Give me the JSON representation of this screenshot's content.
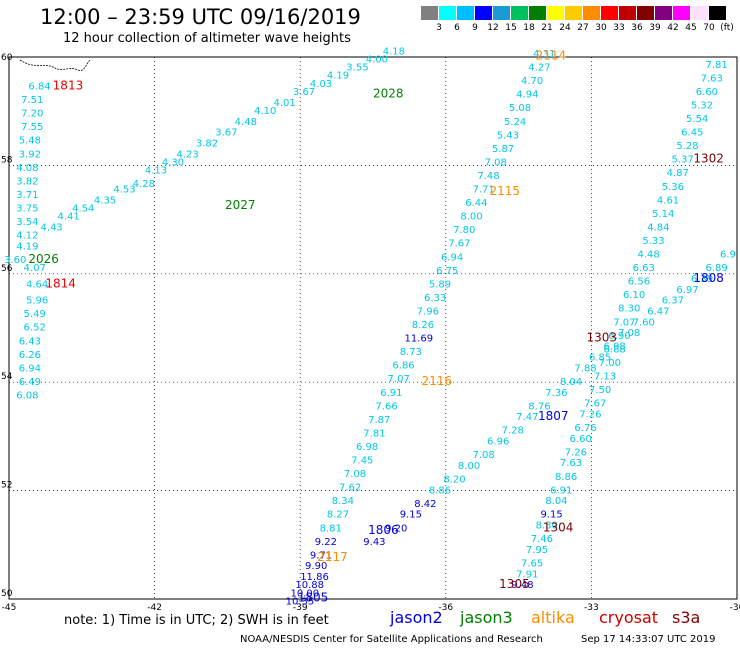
{
  "header": {
    "title": "12:00 – 23:59 UTC 09/16/2019",
    "subtitle": "12 hour collection of altimeter wave heights"
  },
  "colorbar": {
    "colors": [
      "#808080",
      "#00ffff",
      "#00bfff",
      "#0000ff",
      "#1c9ad6",
      "#00c060",
      "#008000",
      "#ffff00",
      "#ffcc00",
      "#ff8c00",
      "#ff0000",
      "#c00000",
      "#800000",
      "#800080",
      "#ff00ff",
      "#ffe0ff",
      "#000000"
    ],
    "labels": [
      "3",
      "6",
      "9",
      "12",
      "15",
      "18",
      "21",
      "24",
      "27",
      "30",
      "33",
      "36",
      "39",
      "42",
      "45",
      "70",
      "(ft)"
    ]
  },
  "footer": {
    "note": "note: 1) Time is in UTC; 2) SWH is in feet",
    "credit": "NOAA/NESDIS Center for Satellite Applications and Research",
    "timestamp": "Sep 17 14:33:07 UTC 2019"
  },
  "legend": [
    {
      "label": "jason2",
      "color": "#0000dd"
    },
    {
      "label": "jason3",
      "color": "#008000"
    },
    {
      "label": "altika",
      "color": "#ff8c00"
    },
    {
      "label": "cryosat",
      "color": "#cc0000"
    },
    {
      "label": "s3a",
      "color": "#800000"
    }
  ],
  "chart_data": {
    "type": "scatter",
    "title": "12:00 – 23:59 UTC 09/16/2019",
    "subtitle": "12 hour collection of altimeter wave heights",
    "xlabel": "",
    "ylabel": "",
    "xlim": [
      -45,
      -30
    ],
    "ylim": [
      50,
      60
    ],
    "x_ticks": [
      "-45",
      "-42",
      "-39",
      "-36",
      "-33",
      "-30"
    ],
    "y_ticks": [
      "50",
      "52",
      "54",
      "56",
      "58",
      "60"
    ],
    "grid": true,
    "colors": {
      "cyan": "#00c8e8",
      "blue": "#0000dd",
      "green": "#008000",
      "orange": "#ff8c00",
      "red": "#ee0000",
      "darkred": "#800000"
    },
    "points": [
      {
        "lon": -44.6,
        "lat": 59.4,
        "v": "6.84",
        "c": "cyan"
      },
      {
        "lon": -44.75,
        "lat": 59.15,
        "v": "7.51",
        "c": "cyan"
      },
      {
        "lon": -44.75,
        "lat": 58.9,
        "v": "7.20",
        "c": "cyan"
      },
      {
        "lon": -44.75,
        "lat": 58.65,
        "v": "7.55",
        "c": "cyan"
      },
      {
        "lon": -44.8,
        "lat": 58.4,
        "v": "5.48",
        "c": "cyan"
      },
      {
        "lon": -44.8,
        "lat": 58.15,
        "v": "3.92",
        "c": "cyan"
      },
      {
        "lon": -44.85,
        "lat": 57.9,
        "v": "4.08",
        "c": "cyan"
      },
      {
        "lon": -44.85,
        "lat": 57.65,
        "v": "3.82",
        "c": "cyan"
      },
      {
        "lon": -44.85,
        "lat": 57.4,
        "v": "3.71",
        "c": "cyan"
      },
      {
        "lon": -44.85,
        "lat": 57.15,
        "v": "3.75",
        "c": "cyan"
      },
      {
        "lon": -44.85,
        "lat": 56.9,
        "v": "3.54",
        "c": "cyan"
      },
      {
        "lon": -44.85,
        "lat": 56.65,
        "v": "4.12",
        "c": "cyan"
      },
      {
        "lon": -44.85,
        "lat": 56.45,
        "v": "4.19",
        "c": "cyan"
      },
      {
        "lon": -45.1,
        "lat": 56.2,
        "v": "3.60",
        "c": "cyan"
      },
      {
        "lon": -44.7,
        "lat": 56.05,
        "v": "4.07",
        "c": "cyan"
      },
      {
        "lon": -44.65,
        "lat": 55.75,
        "v": "4.64",
        "c": "cyan"
      },
      {
        "lon": -44.65,
        "lat": 55.45,
        "v": "5.96",
        "c": "cyan"
      },
      {
        "lon": -44.7,
        "lat": 55.2,
        "v": "5.49",
        "c": "cyan"
      },
      {
        "lon": -44.7,
        "lat": 54.95,
        "v": "6.52",
        "c": "cyan"
      },
      {
        "lon": -44.8,
        "lat": 54.7,
        "v": "6.43",
        "c": "cyan"
      },
      {
        "lon": -44.8,
        "lat": 54.45,
        "v": "6.26",
        "c": "cyan"
      },
      {
        "lon": -44.8,
        "lat": 54.2,
        "v": "6.94",
        "c": "cyan"
      },
      {
        "lon": -44.8,
        "lat": 53.95,
        "v": "6.49",
        "c": "cyan"
      },
      {
        "lon": -44.85,
        "lat": 53.7,
        "v": "6.08",
        "c": "cyan"
      },
      {
        "lon": -44.35,
        "lat": 56.8,
        "v": "4.43",
        "c": "cyan"
      },
      {
        "lon": -44.0,
        "lat": 57.0,
        "v": "4.41",
        "c": "cyan"
      },
      {
        "lon": -43.7,
        "lat": 57.15,
        "v": "4.54",
        "c": "cyan"
      },
      {
        "lon": -43.25,
        "lat": 57.3,
        "v": "4.35",
        "c": "cyan"
      },
      {
        "lon": -42.85,
        "lat": 57.5,
        "v": "4.53",
        "c": "cyan"
      },
      {
        "lon": -42.45,
        "lat": 57.6,
        "v": "4.28",
        "c": "cyan"
      },
      {
        "lon": -42.2,
        "lat": 57.85,
        "v": "4.13",
        "c": "cyan"
      },
      {
        "lon": -41.85,
        "lat": 58.0,
        "v": "4.30",
        "c": "cyan"
      },
      {
        "lon": -41.55,
        "lat": 58.15,
        "v": "4.23",
        "c": "cyan"
      },
      {
        "lon": -41.15,
        "lat": 58.35,
        "v": "3.82",
        "c": "cyan"
      },
      {
        "lon": -40.75,
        "lat": 58.55,
        "v": "3.67",
        "c": "cyan"
      },
      {
        "lon": -40.35,
        "lat": 58.75,
        "v": "4.48",
        "c": "cyan"
      },
      {
        "lon": -39.95,
        "lat": 58.95,
        "v": "4.10",
        "c": "cyan"
      },
      {
        "lon": -39.55,
        "lat": 59.1,
        "v": "4.01",
        "c": "cyan"
      },
      {
        "lon": -39.15,
        "lat": 59.3,
        "v": "3.67",
        "c": "cyan"
      },
      {
        "lon": -38.8,
        "lat": 59.45,
        "v": "4.03",
        "c": "cyan"
      },
      {
        "lon": -38.45,
        "lat": 59.6,
        "v": "4.19",
        "c": "cyan"
      },
      {
        "lon": -38.05,
        "lat": 59.75,
        "v": "3.55",
        "c": "cyan"
      },
      {
        "lon": -37.65,
        "lat": 59.9,
        "v": "4.00",
        "c": "cyan"
      },
      {
        "lon": -37.3,
        "lat": 60.05,
        "v": "4.18",
        "c": "cyan"
      },
      {
        "lon": -34.2,
        "lat": 60.0,
        "v": "4.31",
        "c": "cyan"
      },
      {
        "lon": -34.3,
        "lat": 59.75,
        "v": "4.27",
        "c": "cyan"
      },
      {
        "lon": -34.45,
        "lat": 59.5,
        "v": "4.70",
        "c": "cyan"
      },
      {
        "lon": -34.55,
        "lat": 59.25,
        "v": "4.94",
        "c": "cyan"
      },
      {
        "lon": -34.7,
        "lat": 59.0,
        "v": "5.08",
        "c": "cyan"
      },
      {
        "lon": -34.8,
        "lat": 58.75,
        "v": "5.24",
        "c": "cyan"
      },
      {
        "lon": -34.95,
        "lat": 58.5,
        "v": "5.43",
        "c": "cyan"
      },
      {
        "lon": -35.05,
        "lat": 58.25,
        "v": "5.87",
        "c": "cyan"
      },
      {
        "lon": -35.2,
        "lat": 58.0,
        "v": "7.08",
        "c": "cyan"
      },
      {
        "lon": -35.35,
        "lat": 57.75,
        "v": "7.48",
        "c": "cyan"
      },
      {
        "lon": -35.45,
        "lat": 57.5,
        "v": "7.71",
        "c": "cyan"
      },
      {
        "lon": -35.6,
        "lat": 57.25,
        "v": "6.44",
        "c": "cyan"
      },
      {
        "lon": -35.7,
        "lat": 57.0,
        "v": "8.00",
        "c": "cyan"
      },
      {
        "lon": -35.85,
        "lat": 56.75,
        "v": "7.80",
        "c": "cyan"
      },
      {
        "lon": -35.95,
        "lat": 56.5,
        "v": "7.67",
        "c": "cyan"
      },
      {
        "lon": -36.1,
        "lat": 56.25,
        "v": "6.94",
        "c": "cyan"
      },
      {
        "lon": -36.2,
        "lat": 56.0,
        "v": "6.75",
        "c": "cyan"
      },
      {
        "lon": -36.35,
        "lat": 55.75,
        "v": "5.89",
        "c": "cyan"
      },
      {
        "lon": -36.45,
        "lat": 55.5,
        "v": "6.33",
        "c": "cyan"
      },
      {
        "lon": -36.6,
        "lat": 55.25,
        "v": "7.96",
        "c": "cyan"
      },
      {
        "lon": -36.7,
        "lat": 55.0,
        "v": "8.26",
        "c": "cyan"
      },
      {
        "lon": -36.85,
        "lat": 54.75,
        "v": "11.69",
        "c": "blue"
      },
      {
        "lon": -36.95,
        "lat": 54.5,
        "v": "8.73",
        "c": "cyan"
      },
      {
        "lon": -37.1,
        "lat": 54.25,
        "v": "6.86",
        "c": "cyan"
      },
      {
        "lon": -37.2,
        "lat": 54.0,
        "v": "7.07",
        "c": "cyan"
      },
      {
        "lon": -37.35,
        "lat": 53.75,
        "v": "6.91",
        "c": "cyan"
      },
      {
        "lon": -37.45,
        "lat": 53.5,
        "v": "7.66",
        "c": "cyan"
      },
      {
        "lon": -37.6,
        "lat": 53.25,
        "v": "7.87",
        "c": "cyan"
      },
      {
        "lon": -37.7,
        "lat": 53.0,
        "v": "7.81",
        "c": "cyan"
      },
      {
        "lon": -37.85,
        "lat": 52.75,
        "v": "6.98",
        "c": "cyan"
      },
      {
        "lon": -37.95,
        "lat": 52.5,
        "v": "7.45",
        "c": "cyan"
      },
      {
        "lon": -38.1,
        "lat": 52.25,
        "v": "7.08",
        "c": "cyan"
      },
      {
        "lon": -38.2,
        "lat": 52.0,
        "v": "7.62",
        "c": "cyan"
      },
      {
        "lon": -38.35,
        "lat": 51.75,
        "v": "8.34",
        "c": "cyan"
      },
      {
        "lon": -38.45,
        "lat": 51.5,
        "v": "8.27",
        "c": "cyan"
      },
      {
        "lon": -38.6,
        "lat": 51.25,
        "v": "8.81",
        "c": "cyan"
      },
      {
        "lon": -38.7,
        "lat": 51.0,
        "v": "9.22",
        "c": "blue"
      },
      {
        "lon": -38.8,
        "lat": 50.75,
        "v": "9.71",
        "c": "blue"
      },
      {
        "lon": -38.9,
        "lat": 50.55,
        "v": "9.90",
        "c": "blue"
      },
      {
        "lon": -39.0,
        "lat": 50.35,
        "v": "11.86",
        "c": "blue"
      },
      {
        "lon": -39.1,
        "lat": 50.2,
        "v": "10.88",
        "c": "blue"
      },
      {
        "lon": -39.2,
        "lat": 50.05,
        "v": "10.00",
        "c": "blue"
      },
      {
        "lon": -39.3,
        "lat": 49.9,
        "v": "10.35",
        "c": "blue"
      },
      {
        "lon": -37.7,
        "lat": 51.0,
        "v": "9.43",
        "c": "blue"
      },
      {
        "lon": -37.25,
        "lat": 51.25,
        "v": "9.20",
        "c": "blue"
      },
      {
        "lon": -36.95,
        "lat": 51.5,
        "v": "9.15",
        "c": "blue"
      },
      {
        "lon": -36.65,
        "lat": 51.7,
        "v": "8.42",
        "c": "blue"
      },
      {
        "lon": -36.35,
        "lat": 51.95,
        "v": "8.86",
        "c": "cyan"
      },
      {
        "lon": -36.05,
        "lat": 52.15,
        "v": "8.20",
        "c": "cyan"
      },
      {
        "lon": -35.75,
        "lat": 52.4,
        "v": "8.00",
        "c": "cyan"
      },
      {
        "lon": -35.45,
        "lat": 52.6,
        "v": "7.08",
        "c": "cyan"
      },
      {
        "lon": -35.15,
        "lat": 52.85,
        "v": "6.96",
        "c": "cyan"
      },
      {
        "lon": -34.85,
        "lat": 53.05,
        "v": "7.28",
        "c": "cyan"
      },
      {
        "lon": -34.55,
        "lat": 53.3,
        "v": "7.47",
        "c": "cyan"
      },
      {
        "lon": -34.3,
        "lat": 53.5,
        "v": "8.76",
        "c": "cyan"
      },
      {
        "lon": -33.95,
        "lat": 53.75,
        "v": "7.36",
        "c": "cyan"
      },
      {
        "lon": -33.65,
        "lat": 53.95,
        "v": "8.04",
        "c": "cyan"
      },
      {
        "lon": -33.35,
        "lat": 54.2,
        "v": "7.88",
        "c": "cyan"
      },
      {
        "lon": -33.05,
        "lat": 54.4,
        "v": "6.85",
        "c": "cyan"
      },
      {
        "lon": -32.75,
        "lat": 54.6,
        "v": "6.98",
        "c": "cyan"
      },
      {
        "lon": -32.45,
        "lat": 54.85,
        "v": "7.08",
        "c": "cyan"
      },
      {
        "lon": -32.15,
        "lat": 55.05,
        "v": "7.60",
        "c": "cyan"
      },
      {
        "lon": -31.85,
        "lat": 55.25,
        "v": "6.47",
        "c": "cyan"
      },
      {
        "lon": -31.55,
        "lat": 55.45,
        "v": "6.37",
        "c": "cyan"
      },
      {
        "lon": -31.25,
        "lat": 55.65,
        "v": "6.97",
        "c": "cyan"
      },
      {
        "lon": -30.95,
        "lat": 55.85,
        "v": "6.39",
        "c": "cyan"
      },
      {
        "lon": -30.65,
        "lat": 56.05,
        "v": "6.89",
        "c": "cyan"
      },
      {
        "lon": -30.35,
        "lat": 56.3,
        "v": "6.9",
        "c": "cyan"
      },
      {
        "lon": -34.65,
        "lat": 50.2,
        "v": "9.48",
        "c": "blue"
      },
      {
        "lon": -34.55,
        "lat": 50.4,
        "v": "7.91",
        "c": "cyan"
      },
      {
        "lon": -34.45,
        "lat": 50.6,
        "v": "7.65",
        "c": "cyan"
      },
      {
        "lon": -34.35,
        "lat": 50.85,
        "v": "7.95",
        "c": "cyan"
      },
      {
        "lon": -34.25,
        "lat": 51.05,
        "v": "7.46",
        "c": "cyan"
      },
      {
        "lon": -34.15,
        "lat": 51.3,
        "v": "8.30",
        "c": "cyan"
      },
      {
        "lon": -34.05,
        "lat": 51.5,
        "v": "9.15",
        "c": "blue"
      },
      {
        "lon": -33.95,
        "lat": 51.75,
        "v": "8.04",
        "c": "cyan"
      },
      {
        "lon": -33.85,
        "lat": 51.95,
        "v": "6.91",
        "c": "cyan"
      },
      {
        "lon": -33.75,
        "lat": 52.2,
        "v": "8.86",
        "c": "cyan"
      },
      {
        "lon": -33.65,
        "lat": 52.45,
        "v": "7.63",
        "c": "cyan"
      },
      {
        "lon": -33.55,
        "lat": 52.65,
        "v": "7.26",
        "c": "cyan"
      },
      {
        "lon": -33.45,
        "lat": 52.9,
        "v": "6.60",
        "c": "cyan"
      },
      {
        "lon": -33.35,
        "lat": 53.1,
        "v": "6.76",
        "c": "cyan"
      },
      {
        "lon": -33.25,
        "lat": 53.35,
        "v": "7.26",
        "c": "cyan"
      },
      {
        "lon": -33.15,
        "lat": 53.55,
        "v": "7.67",
        "c": "cyan"
      },
      {
        "lon": -33.05,
        "lat": 53.8,
        "v": "7.50",
        "c": "cyan"
      },
      {
        "lon": -32.95,
        "lat": 54.05,
        "v": "7.13",
        "c": "cyan"
      },
      {
        "lon": -32.85,
        "lat": 54.3,
        "v": "7.00",
        "c": "cyan"
      },
      {
        "lon": -32.75,
        "lat": 54.55,
        "v": "6.88",
        "c": "cyan"
      },
      {
        "lon": -32.65,
        "lat": 54.8,
        "v": "6.90",
        "c": "cyan"
      },
      {
        "lon": -32.55,
        "lat": 55.05,
        "v": "7.07",
        "c": "cyan"
      },
      {
        "lon": -32.45,
        "lat": 55.3,
        "v": "8.30",
        "c": "cyan"
      },
      {
        "lon": -32.35,
        "lat": 55.55,
        "v": "6.10",
        "c": "cyan"
      },
      {
        "lon": -32.25,
        "lat": 55.8,
        "v": "6.56",
        "c": "cyan"
      },
      {
        "lon": -32.15,
        "lat": 56.05,
        "v": "6.63",
        "c": "cyan"
      },
      {
        "lon": -32.05,
        "lat": 56.3,
        "v": "4.48",
        "c": "cyan"
      },
      {
        "lon": -31.95,
        "lat": 56.55,
        "v": "5.33",
        "c": "cyan"
      },
      {
        "lon": -31.85,
        "lat": 56.8,
        "v": "4.84",
        "c": "cyan"
      },
      {
        "lon": -31.75,
        "lat": 57.05,
        "v": "5.14",
        "c": "cyan"
      },
      {
        "lon": -31.65,
        "lat": 57.3,
        "v": "4.61",
        "c": "cyan"
      },
      {
        "lon": -31.55,
        "lat": 57.55,
        "v": "5.36",
        "c": "cyan"
      },
      {
        "lon": -31.45,
        "lat": 57.8,
        "v": "4.87",
        "c": "cyan"
      },
      {
        "lon": -31.35,
        "lat": 58.05,
        "v": "5.37",
        "c": "cyan"
      },
      {
        "lon": -31.25,
        "lat": 58.3,
        "v": "5.28",
        "c": "cyan"
      },
      {
        "lon": -31.15,
        "lat": 58.55,
        "v": "6.45",
        "c": "cyan"
      },
      {
        "lon": -31.05,
        "lat": 58.8,
        "v": "5.54",
        "c": "cyan"
      },
      {
        "lon": -30.95,
        "lat": 59.05,
        "v": "5.32",
        "c": "cyan"
      },
      {
        "lon": -30.85,
        "lat": 59.3,
        "v": "6.60",
        "c": "cyan"
      },
      {
        "lon": -30.75,
        "lat": 59.55,
        "v": "7.63",
        "c": "cyan"
      },
      {
        "lon": -30.65,
        "lat": 59.8,
        "v": "7.81",
        "c": "cyan"
      }
    ],
    "pass_labels": [
      {
        "lon": -44.1,
        "lat": 59.4,
        "text": "1813",
        "c": "red"
      },
      {
        "lon": -44.25,
        "lat": 55.75,
        "text": "1814",
        "c": "red"
      },
      {
        "lon": -40.55,
        "lat": 57.2,
        "text": "2027",
        "c": "green"
      },
      {
        "lon": -44.6,
        "lat": 56.2,
        "text": "2026",
        "c": "green"
      },
      {
        "lon": -37.5,
        "lat": 59.25,
        "text": "2028",
        "c": "green"
      },
      {
        "lon": -34.15,
        "lat": 59.95,
        "text": "2114",
        "c": "orange"
      },
      {
        "lon": -35.1,
        "lat": 57.45,
        "text": "2115",
        "c": "orange"
      },
      {
        "lon": -36.5,
        "lat": 53.95,
        "text": "2116",
        "c": "orange"
      },
      {
        "lon": -38.65,
        "lat": 50.7,
        "text": "2117",
        "c": "orange"
      },
      {
        "lon": -37.6,
        "lat": 51.2,
        "text": "1806",
        "c": "blue"
      },
      {
        "lon": -39.05,
        "lat": 49.95,
        "text": "1805",
        "c": "blue"
      },
      {
        "lon": -34.1,
        "lat": 53.3,
        "text": "1807",
        "c": "blue"
      },
      {
        "lon": -30.9,
        "lat": 55.85,
        "text": "1808",
        "c": "blue"
      },
      {
        "lon": -30.9,
        "lat": 58.05,
        "text": "1302",
        "c": "darkred"
      },
      {
        "lon": -33.1,
        "lat": 54.75,
        "text": "1303",
        "c": "darkred"
      },
      {
        "lon": -34.0,
        "lat": 51.25,
        "text": "1304",
        "c": "darkred"
      },
      {
        "lon": -34.9,
        "lat": 50.2,
        "text": "1305",
        "c": "darkred"
      }
    ]
  }
}
